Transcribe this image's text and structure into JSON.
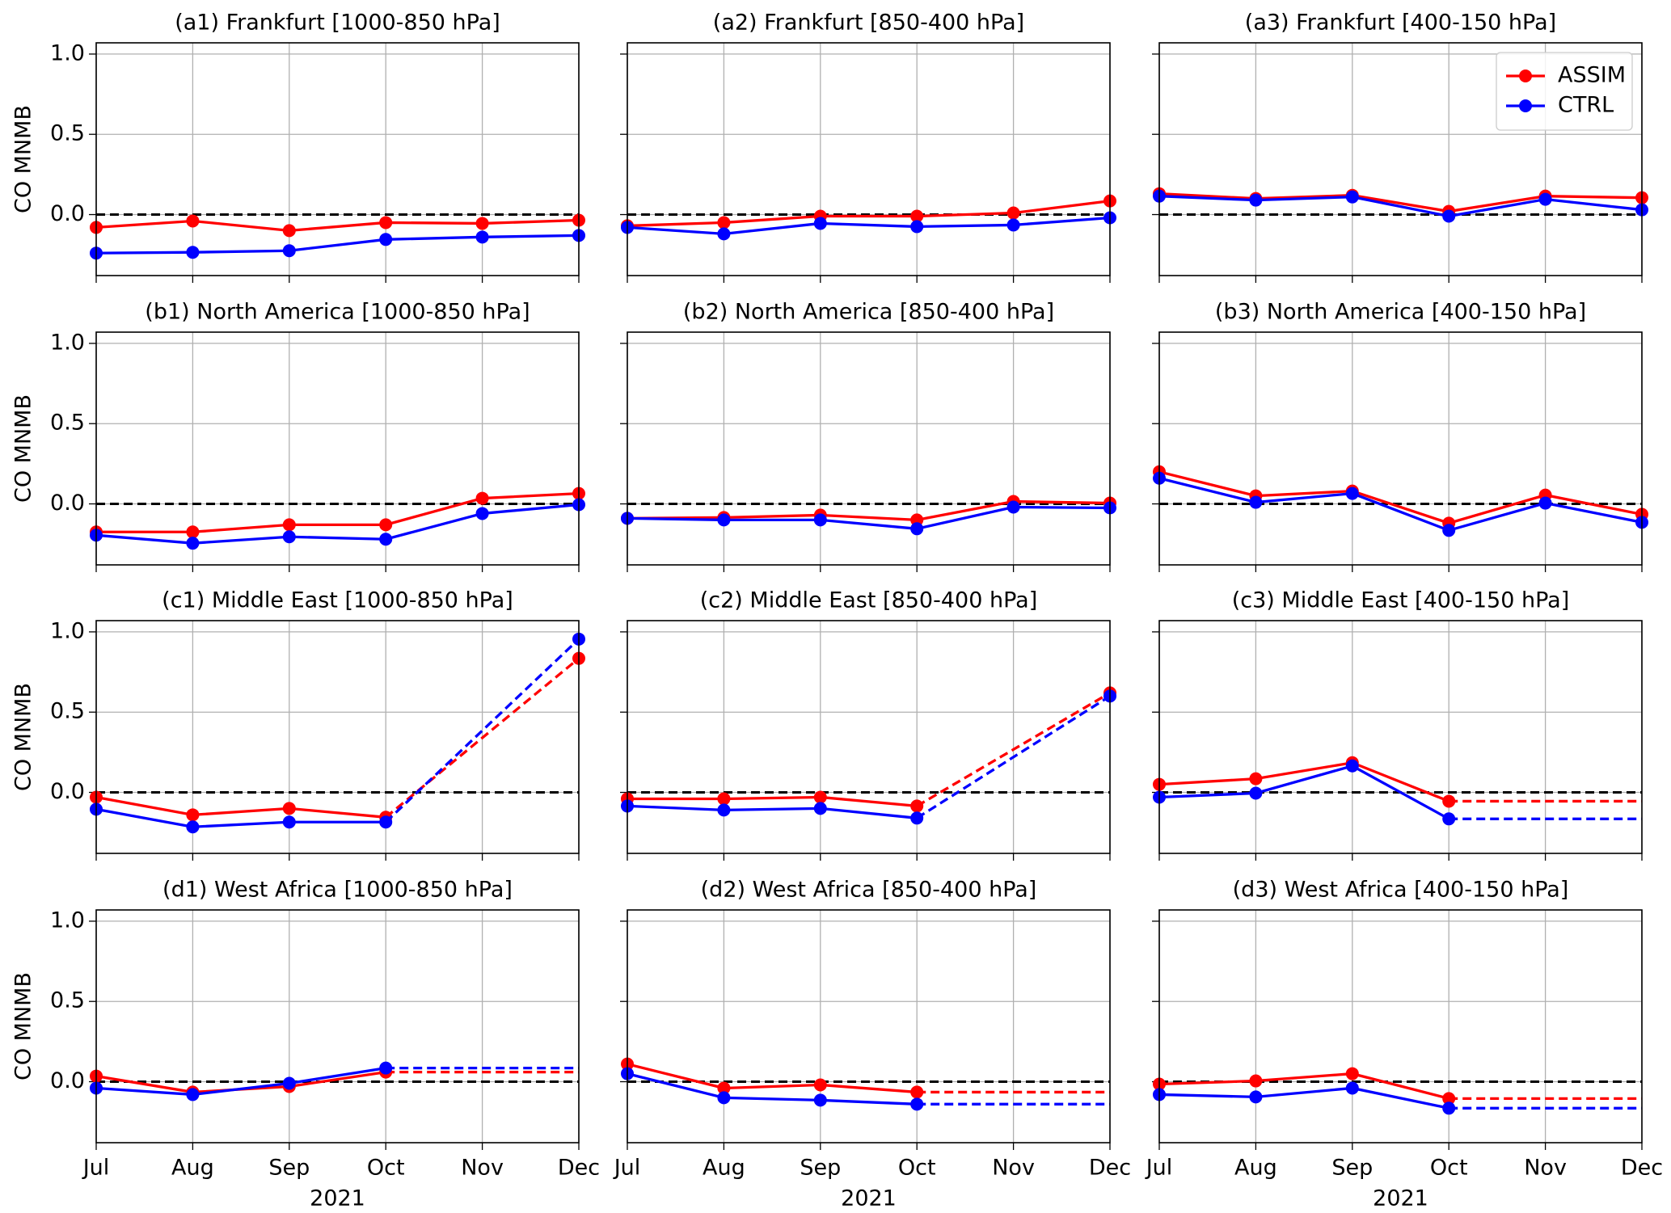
{
  "chart_data": [
    {
      "type": "line",
      "title": "(a1) Frankfurt [1000-850 hPa]",
      "ylabel": "CO MNMB",
      "ylim": [
        -0.38,
        1.07
      ],
      "yticks": [
        {
          "value": 0,
          "label": "0.0"
        },
        {
          "value": 0.5,
          "label": "0.5"
        },
        {
          "value": 1,
          "label": "1.0"
        }
      ],
      "grid": true,
      "zero_line": true,
      "gap_style": "dashed",
      "series": [
        {
          "color": "#ff0000",
          "values": [
            -0.08,
            -0.04,
            -0.1,
            -0.05,
            -0.055,
            -0.035
          ]
        },
        {
          "color": "#0000ff",
          "values": [
            -0.24,
            -0.235,
            -0.225,
            -0.155,
            -0.14,
            -0.13
          ]
        }
      ]
    },
    {
      "type": "line",
      "title": "(a2) Frankfurt [850-400 hPa]",
      "grid": true,
      "zero_line": true,
      "gap_style": "dashed",
      "series": [
        {
          "color": "#ff0000",
          "values": [
            -0.07,
            -0.05,
            -0.01,
            -0.01,
            0.01,
            0.085
          ]
        },
        {
          "color": "#0000ff",
          "values": [
            -0.08,
            -0.12,
            -0.055,
            -0.075,
            -0.065,
            -0.02
          ]
        }
      ]
    },
    {
      "type": "line",
      "title": "(a3) Frankfurt [400-150 hPa]",
      "grid": true,
      "zero_line": true,
      "gap_style": "dashed",
      "legend": "upper right",
      "series": [
        {
          "name": "ASSIM",
          "color": "#ff0000",
          "values": [
            0.13,
            0.1,
            0.12,
            0.02,
            0.115,
            0.105
          ]
        },
        {
          "name": "CTRL",
          "color": "#0000ff",
          "values": [
            0.115,
            0.09,
            0.11,
            -0.01,
            0.095,
            0.03
          ]
        }
      ]
    },
    {
      "type": "line",
      "title": "(b1) North America [1000-850 hPa]",
      "ylabel": "CO MNMB",
      "ylim": [
        -0.38,
        1.07
      ],
      "yticks": [
        {
          "value": 0,
          "label": "0.0"
        },
        {
          "value": 0.5,
          "label": "0.5"
        },
        {
          "value": 1,
          "label": "1.0"
        }
      ],
      "grid": true,
      "zero_line": true,
      "gap_style": "dashed",
      "series": [
        {
          "color": "#ff0000",
          "values": [
            -0.175,
            -0.175,
            -0.13,
            -0.13,
            0.035,
            0.065
          ]
        },
        {
          "color": "#0000ff",
          "values": [
            -0.195,
            -0.245,
            -0.205,
            -0.22,
            -0.06,
            -0.005
          ]
        }
      ]
    },
    {
      "type": "line",
      "title": "(b2) North America [850-400 hPa]",
      "grid": true,
      "zero_line": true,
      "gap_style": "dashed",
      "series": [
        {
          "color": "#ff0000",
          "values": [
            -0.09,
            -0.085,
            -0.07,
            -0.1,
            0.015,
            0.005
          ]
        },
        {
          "color": "#0000ff",
          "values": [
            -0.09,
            -0.1,
            -0.1,
            -0.155,
            -0.02,
            -0.025
          ]
        }
      ]
    },
    {
      "type": "line",
      "title": "(b3) North America [400-150 hPa]",
      "grid": true,
      "zero_line": true,
      "gap_style": "dashed",
      "series": [
        {
          "color": "#ff0000",
          "values": [
            0.2,
            0.05,
            0.08,
            -0.12,
            0.055,
            -0.065
          ]
        },
        {
          "color": "#0000ff",
          "values": [
            0.16,
            0.01,
            0.065,
            -0.165,
            0.005,
            -0.115
          ]
        }
      ]
    },
    {
      "type": "line",
      "title": "(c1) Middle East [1000-850 hPa]",
      "ylabel": "CO MNMB",
      "ylim": [
        -0.38,
        1.07
      ],
      "yticks": [
        {
          "value": 0,
          "label": "0.0"
        },
        {
          "value": 0.5,
          "label": "0.5"
        },
        {
          "value": 1,
          "label": "1.0"
        }
      ],
      "grid": true,
      "zero_line": true,
      "gap_style": "dashed",
      "series": [
        {
          "color": "#ff0000",
          "values": [
            -0.03,
            -0.14,
            -0.1,
            -0.155,
            null,
            0.835
          ]
        },
        {
          "color": "#0000ff",
          "values": [
            -0.105,
            -0.215,
            -0.185,
            -0.185,
            null,
            0.955
          ]
        }
      ]
    },
    {
      "type": "line",
      "title": "(c2) Middle East [850-400 hPa]",
      "grid": true,
      "zero_line": true,
      "gap_style": "dashed",
      "series": [
        {
          "color": "#ff0000",
          "values": [
            -0.04,
            -0.04,
            -0.03,
            -0.085,
            null,
            0.62
          ]
        },
        {
          "color": "#0000ff",
          "values": [
            -0.085,
            -0.11,
            -0.1,
            -0.16,
            null,
            0.6
          ]
        }
      ]
    },
    {
      "type": "line",
      "title": "(c3) Middle East [400-150 hPa]",
      "grid": true,
      "zero_line": true,
      "gap_style": "dashed",
      "series": [
        {
          "color": "#ff0000",
          "values": [
            0.05,
            0.085,
            0.185,
            -0.055,
            null,
            null
          ]
        },
        {
          "color": "#0000ff",
          "values": [
            -0.03,
            -0.005,
            0.165,
            -0.165,
            null,
            null
          ]
        }
      ]
    },
    {
      "type": "line",
      "title": "(d1) West Africa [1000-850 hPa]",
      "ylabel": "CO MNMB",
      "xlabel": "2021",
      "categories": [
        "Jul",
        "Aug",
        "Sep",
        "Oct",
        "Nov",
        "Dec"
      ],
      "ylim": [
        -0.38,
        1.07
      ],
      "yticks": [
        {
          "value": 0,
          "label": "0.0"
        },
        {
          "value": 0.5,
          "label": "0.5"
        },
        {
          "value": 1,
          "label": "1.0"
        }
      ],
      "grid": true,
      "zero_line": true,
      "gap_style": "dashed",
      "series": [
        {
          "color": "#ff0000",
          "values": [
            0.035,
            -0.065,
            -0.03,
            0.06,
            null,
            null
          ]
        },
        {
          "color": "#0000ff",
          "values": [
            -0.04,
            -0.08,
            -0.01,
            0.085,
            null,
            null
          ]
        }
      ]
    },
    {
      "type": "line",
      "title": "(d2) West Africa [850-400 hPa]",
      "xlabel": "2021",
      "categories": [
        "Jul",
        "Aug",
        "Sep",
        "Oct",
        "Nov",
        "Dec"
      ],
      "grid": true,
      "zero_line": true,
      "gap_style": "dashed",
      "series": [
        {
          "color": "#ff0000",
          "values": [
            0.11,
            -0.04,
            -0.02,
            -0.065,
            null,
            null
          ]
        },
        {
          "color": "#0000ff",
          "values": [
            0.05,
            -0.1,
            -0.115,
            -0.14,
            null,
            null
          ]
        }
      ]
    },
    {
      "type": "line",
      "title": "(d3) West Africa [400-150 hPa]",
      "xlabel": "2021",
      "categories": [
        "Jul",
        "Aug",
        "Sep",
        "Oct",
        "Nov",
        "Dec"
      ],
      "grid": true,
      "zero_line": true,
      "gap_style": "dashed",
      "series": [
        {
          "color": "#ff0000",
          "values": [
            -0.015,
            0.005,
            0.05,
            -0.105,
            null,
            null
          ]
        },
        {
          "color": "#0000ff",
          "values": [
            -0.08,
            -0.095,
            -0.04,
            -0.165,
            null,
            null
          ]
        }
      ]
    }
  ]
}
